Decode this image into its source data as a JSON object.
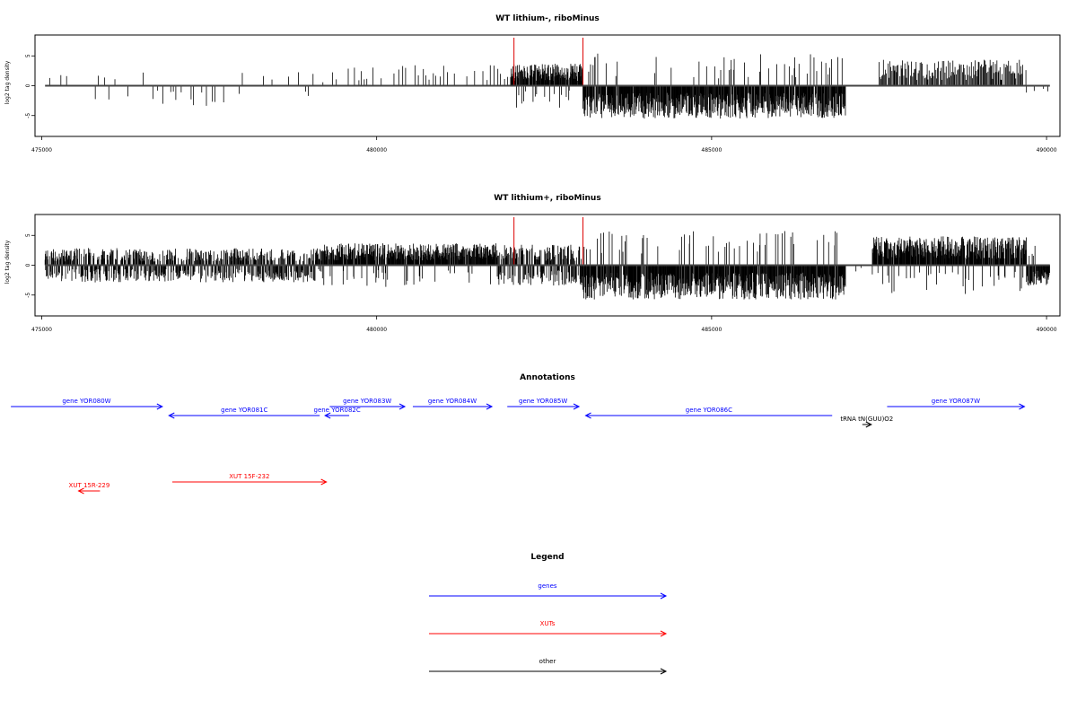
{
  "chart_data": [
    {
      "type": "bar",
      "title": "WT lithium-, riboMinus",
      "ylabel": "log2 tag density",
      "xlim": [
        474900,
        490200
      ],
      "ylim": [
        -8.5,
        8.5
      ],
      "xticks": [
        475000,
        480000,
        485000,
        490000
      ],
      "yticks": [
        -5,
        0,
        5
      ],
      "highlight_positions": [
        482050,
        483080
      ],
      "highlight_color": "#dd0000",
      "series": [
        {
          "values": [
            {
              "start": 475050,
              "end": 475400,
              "pattern": "sparse",
              "amp": 2.5,
              "sign": 1
            },
            {
              "start": 475800,
              "end": 476600,
              "pattern": "sparse",
              "amp": 2.5,
              "sign": 0
            },
            {
              "start": 476600,
              "end": 477800,
              "pattern": "sparse",
              "amp": 3.0,
              "sign": -1
            },
            {
              "start": 477800,
              "end": 479500,
              "pattern": "sparse",
              "amp": 2.0,
              "sign": 0
            },
            {
              "start": 479500,
              "end": 481000,
              "pattern": "sparse",
              "amp": 3.0,
              "sign": 1
            },
            {
              "start": 481000,
              "end": 482000,
              "pattern": "sparse",
              "amp": 3.0,
              "sign": 1
            },
            {
              "start": 482000,
              "end": 483080,
              "pattern": "dense",
              "amp": 3.2,
              "sign": 1
            },
            {
              "start": 483080,
              "end": 487000,
              "pattern": "dense",
              "amp": 4.8,
              "sign": -1
            },
            {
              "start": 487500,
              "end": 489700,
              "pattern": "medium",
              "amp": 3.8,
              "sign": 1
            },
            {
              "start": 489700,
              "end": 490050,
              "pattern": "sparse",
              "amp": 1.0,
              "sign": -1
            }
          ]
        }
      ]
    },
    {
      "type": "bar",
      "title": "WT lithium+, riboMinus",
      "ylabel": "log2 tag density",
      "xlim": [
        474900,
        490200
      ],
      "ylim": [
        -8.5,
        8.5
      ],
      "xticks": [
        475000,
        480000,
        485000,
        490000
      ],
      "yticks": [
        -5,
        0,
        5
      ],
      "highlight_positions": [
        482050,
        483080
      ],
      "highlight_color": "#dd0000",
      "series": [
        {
          "values": [
            {
              "start": 475050,
              "end": 479200,
              "pattern": "dense",
              "amp": 2.5,
              "sign": 0
            },
            {
              "start": 479200,
              "end": 481800,
              "pattern": "dense",
              "amp": 3.2,
              "sign": 1
            },
            {
              "start": 481800,
              "end": 483080,
              "pattern": "dense",
              "amp": 3.0,
              "sign": 0
            },
            {
              "start": 483080,
              "end": 487000,
              "pattern": "dense",
              "amp": 5.0,
              "sign": -1
            },
            {
              "start": 487000,
              "end": 487400,
              "pattern": "sparse",
              "amp": 1.5,
              "sign": -1
            },
            {
              "start": 487400,
              "end": 489700,
              "pattern": "dense",
              "amp": 4.2,
              "sign": 1
            },
            {
              "start": 489700,
              "end": 490050,
              "pattern": "dense",
              "amp": 3.0,
              "sign": -1
            }
          ]
        }
      ]
    }
  ],
  "annotations": {
    "title": "Annotations",
    "items": [
      {
        "label": "gene YOR080W",
        "kind": "gene",
        "strand": "+",
        "start": 474540,
        "end": 476800,
        "row": 0
      },
      {
        "label": "gene YOR081C",
        "kind": "gene",
        "strand": "-",
        "start": 476900,
        "end": 479150,
        "row": 1
      },
      {
        "label": "gene YOR082C",
        "kind": "gene",
        "strand": "-",
        "start": 479230,
        "end": 479590,
        "row": 1
      },
      {
        "label": "gene YOR083W",
        "kind": "gene",
        "strand": "+",
        "start": 479300,
        "end": 480420,
        "row": 0
      },
      {
        "label": "gene YOR084W",
        "kind": "gene",
        "strand": "+",
        "start": 480540,
        "end": 481720,
        "row": 0
      },
      {
        "label": "gene YOR085W",
        "kind": "gene",
        "strand": "+",
        "start": 481950,
        "end": 483020,
        "row": 0
      },
      {
        "label": "gene YOR086C",
        "kind": "gene",
        "strand": "-",
        "start": 483120,
        "end": 486800,
        "row": 1
      },
      {
        "label": "tRNA tN(GUU)O2",
        "kind": "other",
        "strand": "+",
        "start": 487250,
        "end": 487300,
        "row": 2
      },
      {
        "label": "gene YOR087W",
        "kind": "gene",
        "strand": "+",
        "start": 487620,
        "end": 489670,
        "row": 0
      },
      {
        "label": "XUT 15R-229",
        "kind": "xut",
        "strand": "-",
        "start": 475550,
        "end": 475870,
        "row": 4
      },
      {
        "label": "XUT 15F-232",
        "kind": "xut",
        "strand": "+",
        "start": 476950,
        "end": 479250,
        "row": 3
      }
    ]
  },
  "legend": {
    "title": "Legend",
    "items": [
      {
        "label": "genes",
        "color": "#0000ff"
      },
      {
        "label": "XUTs",
        "color": "#ff0000"
      },
      {
        "label": "other",
        "color": "#000000"
      }
    ]
  },
  "colors": {
    "gene": "#0000ff",
    "xut": "#ff0000",
    "other": "#000000",
    "bars": "#000000",
    "highlight": "#dd0000"
  }
}
